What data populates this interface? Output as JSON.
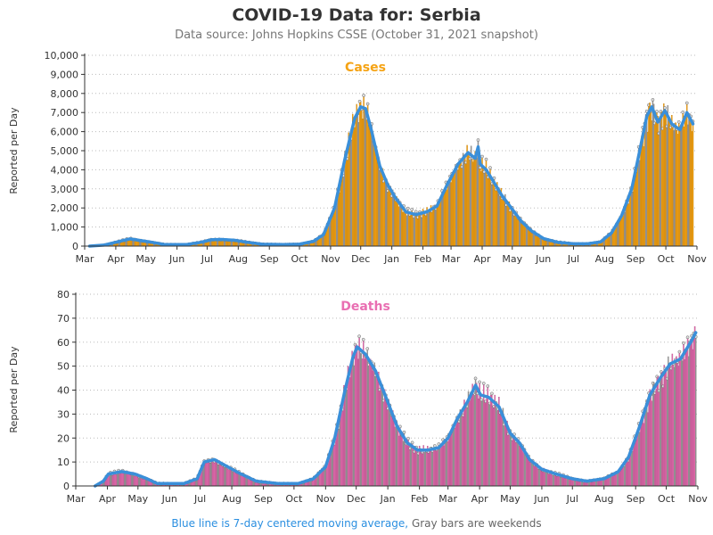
{
  "title": "COVID-19 Data for: Serbia",
  "subtitle": "Data source: Johns Hopkins CSSE (October 31, 2021 snapshot)",
  "footer": {
    "blue_text": "Blue line is 7-day centered moving average,",
    "gray_text": "Gray bars are weekends"
  },
  "colors": {
    "cases": "#f5a314",
    "deaths": "#e96fb2",
    "average": "#3a8fd9",
    "weekend": "#999999"
  },
  "chart_data": [
    {
      "type": "bar",
      "title": "Cases",
      "ylabel": "Reported per Day",
      "ylim": [
        0,
        10000
      ],
      "yticks": [
        "0",
        "1,000",
        "2,000",
        "3,000",
        "4,000",
        "5,000",
        "6,000",
        "7,000",
        "8,000",
        "9,000",
        "10,000"
      ],
      "xticks": [
        "Mar",
        "Apr",
        "May",
        "Jun",
        "Jul",
        "Aug",
        "Sep",
        "Oct",
        "Nov",
        "Dec",
        "Jan",
        "Feb",
        "Mar",
        "Apr",
        "May",
        "Jun",
        "Jul",
        "Aug",
        "Sep",
        "Oct",
        "Nov"
      ],
      "grid": "horizontal dotted",
      "series": [
        {
          "name": "7-day centered moving average",
          "points": [
            [
              "2020-03-06",
              0
            ],
            [
              "2020-03-20",
              50
            ],
            [
              "2020-04-01",
              200
            ],
            [
              "2020-04-15",
              380
            ],
            [
              "2020-04-25",
              300
            ],
            [
              "2020-05-05",
              220
            ],
            [
              "2020-05-20",
              80
            ],
            [
              "2020-06-10",
              80
            ],
            [
              "2020-06-25",
              200
            ],
            [
              "2020-07-05",
              330
            ],
            [
              "2020-07-15",
              350
            ],
            [
              "2020-07-28",
              310
            ],
            [
              "2020-08-10",
              200
            ],
            [
              "2020-08-25",
              100
            ],
            [
              "2020-09-15",
              80
            ],
            [
              "2020-10-01",
              100
            ],
            [
              "2020-10-15",
              250
            ],
            [
              "2020-10-25",
              600
            ],
            [
              "2020-11-05",
              2000
            ],
            [
              "2020-11-15",
              4500
            ],
            [
              "2020-11-25",
              6700
            ],
            [
              "2020-12-01",
              7300
            ],
            [
              "2020-12-06",
              7200
            ],
            [
              "2020-12-12",
              6000
            ],
            [
              "2020-12-20",
              4200
            ],
            [
              "2020-12-28",
              3200
            ],
            [
              "2021-01-05",
              2500
            ],
            [
              "2021-01-15",
              1800
            ],
            [
              "2021-01-25",
              1650
            ],
            [
              "2021-02-05",
              1800
            ],
            [
              "2021-02-15",
              2100
            ],
            [
              "2021-02-25",
              3200
            ],
            [
              "2021-03-08",
              4300
            ],
            [
              "2021-03-18",
              4900
            ],
            [
              "2021-03-25",
              4600
            ],
            [
              "2021-03-28",
              5200
            ],
            [
              "2021-03-30",
              4300
            ],
            [
              "2021-04-05",
              4000
            ],
            [
              "2021-04-12",
              3400
            ],
            [
              "2021-04-20",
              2700
            ],
            [
              "2021-04-30",
              2000
            ],
            [
              "2021-05-10",
              1300
            ],
            [
              "2021-05-20",
              800
            ],
            [
              "2021-06-01",
              400
            ],
            [
              "2021-06-15",
              200
            ],
            [
              "2021-07-01",
              120
            ],
            [
              "2021-07-15",
              120
            ],
            [
              "2021-07-28",
              220
            ],
            [
              "2021-08-08",
              700
            ],
            [
              "2021-08-18",
              1600
            ],
            [
              "2021-08-28",
              3000
            ],
            [
              "2021-09-05",
              5000
            ],
            [
              "2021-09-12",
              6800
            ],
            [
              "2021-09-17",
              7300
            ],
            [
              "2021-09-23",
              6500
            ],
            [
              "2021-09-30",
              7100
            ],
            [
              "2021-10-07",
              6400
            ],
            [
              "2021-10-15",
              6100
            ],
            [
              "2021-10-22",
              7000
            ],
            [
              "2021-10-28",
              6400
            ]
          ]
        }
      ]
    },
    {
      "type": "bar",
      "title": "Deaths",
      "ylabel": "Reported per Day",
      "ylim": [
        0,
        80
      ],
      "yticks": [
        "0",
        "10",
        "20",
        "30",
        "40",
        "50",
        "60",
        "70",
        "80"
      ],
      "xticks": [
        "Mar",
        "Apr",
        "May",
        "Jun",
        "Jul",
        "Aug",
        "Sep",
        "Oct",
        "Nov",
        "Dec",
        "Jan",
        "Feb",
        "Mar",
        "Apr",
        "May",
        "Jun",
        "Jul",
        "Aug",
        "Sep",
        "Oct",
        "Nov"
      ],
      "grid": "horizontal dotted",
      "series": [
        {
          "name": "7-day centered moving average",
          "points": [
            [
              "2020-03-20",
              0
            ],
            [
              "2020-03-28",
              2
            ],
            [
              "2020-04-02",
              5
            ],
            [
              "2020-04-15",
              6
            ],
            [
              "2020-04-28",
              5
            ],
            [
              "2020-05-10",
              3
            ],
            [
              "2020-05-20",
              1
            ],
            [
              "2020-06-15",
              1
            ],
            [
              "2020-06-28",
              3
            ],
            [
              "2020-07-05",
              10
            ],
            [
              "2020-07-15",
              11
            ],
            [
              "2020-07-28",
              8
            ],
            [
              "2020-08-10",
              5
            ],
            [
              "2020-08-25",
              2
            ],
            [
              "2020-09-15",
              1
            ],
            [
              "2020-10-05",
              1
            ],
            [
              "2020-10-20",
              3
            ],
            [
              "2020-11-01",
              8
            ],
            [
              "2020-11-10",
              20
            ],
            [
              "2020-11-20",
              40
            ],
            [
              "2020-11-28",
              54
            ],
            [
              "2020-12-02",
              58
            ],
            [
              "2020-12-10",
              55
            ],
            [
              "2020-12-20",
              48
            ],
            [
              "2021-01-01",
              35
            ],
            [
              "2021-01-10",
              25
            ],
            [
              "2021-01-20",
              18
            ],
            [
              "2021-01-30",
              15
            ],
            [
              "2021-02-10",
              15
            ],
            [
              "2021-02-20",
              16
            ],
            [
              "2021-03-01",
              20
            ],
            [
              "2021-03-10",
              28
            ],
            [
              "2021-03-20",
              35
            ],
            [
              "2021-03-28",
              42
            ],
            [
              "2021-04-02",
              38
            ],
            [
              "2021-04-10",
              37
            ],
            [
              "2021-04-20",
              33
            ],
            [
              "2021-05-01",
              22
            ],
            [
              "2021-05-10",
              18
            ],
            [
              "2021-05-20",
              11
            ],
            [
              "2021-06-01",
              7
            ],
            [
              "2021-06-15",
              5
            ],
            [
              "2021-07-01",
              3
            ],
            [
              "2021-07-15",
              2
            ],
            [
              "2021-08-01",
              3
            ],
            [
              "2021-08-15",
              6
            ],
            [
              "2021-08-25",
              12
            ],
            [
              "2021-09-05",
              25
            ],
            [
              "2021-09-15",
              38
            ],
            [
              "2021-09-25",
              45
            ],
            [
              "2021-10-05",
              51
            ],
            [
              "2021-10-15",
              53
            ],
            [
              "2021-10-25",
              60
            ],
            [
              "2021-10-30",
              64
            ]
          ]
        }
      ]
    }
  ]
}
